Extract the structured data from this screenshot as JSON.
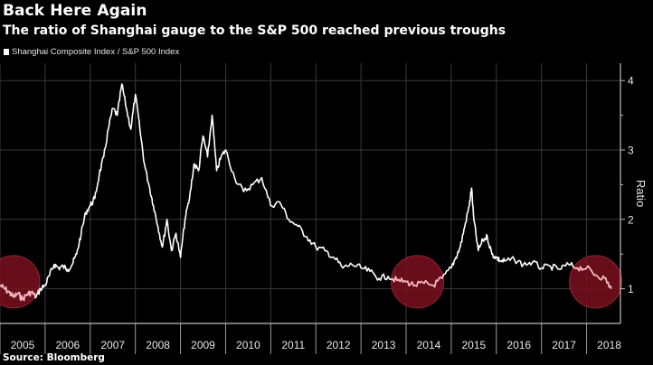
{
  "header": {
    "title": "Back Here Again",
    "subtitle": "The ratio of Shanghai gauge to the S&P 500 reached previous troughs"
  },
  "legend": {
    "label": "Shanghai Composite Index / S&P 500 Index",
    "color": "#ffffff"
  },
  "footer": {
    "source": "Source: Bloomberg"
  },
  "colors": {
    "background": "#000000",
    "line": "#ffffff",
    "grid": "#3a3a3a",
    "highlight_fill": "#7a0f1f",
    "highlight_line": "#f4b3bd"
  },
  "chart_data": {
    "type": "line",
    "title": "Back Here Again",
    "subtitle": "The ratio of Shanghai gauge to the S&P 500 reached previous troughs",
    "xlabel": "",
    "ylabel": "Ratio",
    "xlim": [
      2005.0,
      2018.75
    ],
    "ylim": [
      0.5,
      4.25
    ],
    "yticks": [
      1,
      2,
      3,
      4
    ],
    "xtick_labels": [
      "2005",
      "2006",
      "2007",
      "2008",
      "2009",
      "2010",
      "2011",
      "2012",
      "2013",
      "2014",
      "2015",
      "2016",
      "2017",
      "2018"
    ],
    "grid": true,
    "legend_position": "top-left",
    "series": [
      {
        "name": "Shanghai Composite Index / S&P 500 Index",
        "x": [
          2005.0,
          2005.1,
          2005.2,
          2005.3,
          2005.4,
          2005.5,
          2005.6,
          2005.7,
          2005.8,
          2005.9,
          2006.0,
          2006.1,
          2006.2,
          2006.3,
          2006.4,
          2006.5,
          2006.6,
          2006.7,
          2006.8,
          2006.9,
          2007.0,
          2007.1,
          2007.2,
          2007.3,
          2007.4,
          2007.5,
          2007.6,
          2007.7,
          2007.8,
          2007.9,
          2008.0,
          2008.1,
          2008.2,
          2008.3,
          2008.4,
          2008.5,
          2008.6,
          2008.7,
          2008.8,
          2008.9,
          2009.0,
          2009.1,
          2009.2,
          2009.3,
          2009.4,
          2009.5,
          2009.6,
          2009.7,
          2009.8,
          2009.9,
          2010.0,
          2010.2,
          2010.4,
          2010.6,
          2010.8,
          2011.0,
          2011.2,
          2011.4,
          2011.6,
          2011.8,
          2012.0,
          2012.2,
          2012.4,
          2012.6,
          2012.8,
          2013.0,
          2013.2,
          2013.4,
          2013.6,
          2013.8,
          2014.0,
          2014.2,
          2014.4,
          2014.6,
          2014.8,
          2015.0,
          2015.1,
          2015.2,
          2015.3,
          2015.4,
          2015.45,
          2015.5,
          2015.6,
          2015.7,
          2015.8,
          2015.9,
          2016.0,
          2016.1,
          2016.2,
          2016.4,
          2016.6,
          2016.8,
          2017.0,
          2017.2,
          2017.4,
          2017.6,
          2017.8,
          2018.0,
          2018.2,
          2018.4,
          2018.55
        ],
        "values": [
          1.05,
          1.0,
          0.95,
          0.88,
          0.93,
          0.85,
          0.92,
          0.95,
          0.88,
          1.0,
          1.05,
          1.2,
          1.35,
          1.3,
          1.32,
          1.28,
          1.35,
          1.5,
          1.8,
          2.1,
          2.2,
          2.3,
          2.65,
          2.9,
          3.3,
          3.6,
          3.5,
          3.95,
          3.6,
          3.3,
          3.8,
          3.3,
          2.8,
          2.5,
          2.2,
          1.9,
          1.6,
          2.0,
          1.55,
          1.8,
          1.45,
          2.0,
          2.3,
          2.8,
          2.7,
          3.2,
          2.9,
          3.5,
          2.7,
          2.9,
          3.0,
          2.6,
          2.4,
          2.5,
          2.6,
          2.2,
          2.25,
          2.0,
          1.9,
          1.75,
          1.6,
          1.55,
          1.45,
          1.3,
          1.35,
          1.3,
          1.25,
          1.15,
          1.18,
          1.12,
          1.1,
          1.05,
          1.08,
          1.05,
          1.15,
          1.3,
          1.45,
          1.6,
          1.9,
          2.2,
          2.45,
          2.0,
          1.55,
          1.7,
          1.75,
          1.5,
          1.45,
          1.4,
          1.4,
          1.42,
          1.35,
          1.38,
          1.3,
          1.32,
          1.28,
          1.35,
          1.3,
          1.3,
          1.2,
          1.15,
          1.0
        ]
      }
    ],
    "highlights": [
      {
        "label": "2005 trough",
        "x_center": 2005.3,
        "y_center": 1.1
      },
      {
        "label": "2014 trough",
        "x_center": 2014.25,
        "y_center": 1.1
      },
      {
        "label": "2018 trough",
        "x_center": 2018.2,
        "y_center": 1.1
      }
    ]
  }
}
